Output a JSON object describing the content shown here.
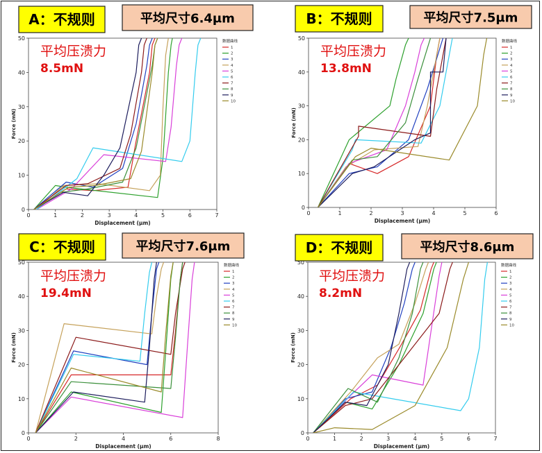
{
  "chart_data": [
    {
      "type": "line",
      "panel_label": "A：不规则",
      "size_label": "平均尺寸6.4μm",
      "annotation_title": "平均压溃力",
      "annotation_value": "8.5mN",
      "xlabel": "Displacement (μm)",
      "ylabel": "Force (mN)",
      "xlim": [
        0,
        7
      ],
      "ylim": [
        0,
        50
      ],
      "xticks": [
        "0",
        "1",
        "2",
        "3",
        "4",
        "5",
        "6",
        "7"
      ],
      "yticks": [
        "0",
        "10",
        "20",
        "30",
        "40",
        "50"
      ],
      "legend_title": "数据曲线",
      "series": [
        {
          "name": "1",
          "color": "#d62728",
          "x": [
            0.2,
            1.4,
            2.4,
            3.7,
            4.0,
            4.5,
            4.6,
            4.7
          ],
          "y": [
            0,
            6,
            5.5,
            6.5,
            20,
            40,
            48,
            50
          ]
        },
        {
          "name": "2",
          "color": "#2ca02c",
          "x": [
            0.2,
            1.0,
            1.4,
            4.8,
            5.0,
            5.2,
            5.3,
            5.35
          ],
          "y": [
            0,
            7,
            6.5,
            3.5,
            15,
            40,
            48,
            50
          ]
        },
        {
          "name": "3",
          "color": "#1f3fbf",
          "x": [
            0.2,
            1.4,
            2.4,
            3.5,
            4.0,
            4.4,
            4.5,
            4.6
          ],
          "y": [
            0,
            8,
            6.5,
            12,
            25,
            42,
            48,
            50
          ]
        },
        {
          "name": "4",
          "color": "#c5a15a",
          "x": [
            0.3,
            1.3,
            2.6,
            4.5,
            4.9,
            5.0,
            5.1,
            5.2
          ],
          "y": [
            0,
            7,
            7.5,
            5.5,
            10,
            30,
            45,
            50
          ]
        },
        {
          "name": "5",
          "color": "#d93fd9",
          "x": [
            0.3,
            1.6,
            2.8,
            5.1,
            5.3,
            5.5,
            5.6,
            5.7
          ],
          "y": [
            0,
            6,
            16,
            14,
            24,
            42,
            48,
            50
          ]
        },
        {
          "name": "6",
          "color": "#33ccee",
          "x": [
            0.3,
            1.8,
            2.4,
            5.7,
            6.0,
            6.2,
            6.3,
            6.4
          ],
          "y": [
            0,
            9,
            18,
            14,
            20,
            40,
            48,
            50
          ]
        },
        {
          "name": "7",
          "color": "#8b1a1a",
          "x": [
            0.2,
            1.4,
            2.2,
            3.4,
            3.8,
            4.2,
            4.3,
            4.4
          ],
          "y": [
            0,
            7,
            7.5,
            12,
            22,
            40,
            48,
            50
          ]
        },
        {
          "name": "8",
          "color": "#3a8f3a",
          "x": [
            0.2,
            1.2,
            2.2,
            3.5,
            4.0,
            4.6,
            4.7,
            4.8
          ],
          "y": [
            0,
            5,
            6,
            8,
            18,
            42,
            48,
            50
          ]
        },
        {
          "name": "9",
          "color": "#1c1c5c",
          "x": [
            0.2,
            1.3,
            2.2,
            2.8,
            3.4,
            4.0,
            4.1,
            4.2
          ],
          "y": [
            0,
            5,
            4,
            10,
            18,
            40,
            48,
            50
          ]
        },
        {
          "name": "10",
          "color": "#9a8a2a",
          "x": [
            0.2,
            1.5,
            2.5,
            3.8,
            4.2,
            4.6,
            4.7,
            4.8
          ],
          "y": [
            0,
            6.5,
            7,
            9,
            17,
            40,
            48,
            50
          ]
        }
      ]
    },
    {
      "type": "line",
      "panel_label": "B：不规则",
      "size_label": "平均尺寸7.5μm",
      "annotation_title": "平均压溃力",
      "annotation_value": "13.8mN",
      "xlabel": "Displacement (μm)",
      "ylabel": "Force (mN)",
      "xlim": [
        0,
        6
      ],
      "ylim": [
        0,
        50
      ],
      "xticks": [
        "0",
        "1",
        "2",
        "3",
        "4",
        "5",
        "6"
      ],
      "yticks": [
        "0",
        "10",
        "20",
        "30",
        "40",
        "50"
      ],
      "legend_title": "数据曲线",
      "series": [
        {
          "name": "1",
          "color": "#d62728",
          "x": [
            0.3,
            1.3,
            2.2,
            3.2,
            3.9,
            4.1,
            4.2
          ],
          "y": [
            0,
            13,
            10,
            15,
            30,
            45,
            50
          ]
        },
        {
          "name": "2",
          "color": "#2ca02c",
          "x": [
            0.3,
            1.0,
            1.3,
            2.6,
            2.8,
            3.1,
            3.2
          ],
          "y": [
            0,
            14,
            20,
            30,
            38,
            48,
            50
          ]
        },
        {
          "name": "3",
          "color": "#1f3fbf",
          "x": [
            0.3,
            1.3,
            2.2,
            3.2,
            3.8,
            4.2,
            4.3
          ],
          "y": [
            0,
            10,
            12,
            20,
            35,
            47,
            50
          ]
        },
        {
          "name": "4",
          "color": "#c5a15a",
          "x": [
            0.3,
            1.2,
            2.1,
            3.5,
            3.8,
            4.1,
            4.2
          ],
          "y": [
            0,
            12,
            17,
            18,
            30,
            45,
            50
          ]
        },
        {
          "name": "5",
          "color": "#d93fd9",
          "x": [
            0.3,
            1.3,
            2.5,
            3.1,
            3.4,
            3.6,
            3.7
          ],
          "y": [
            0,
            13,
            17,
            30,
            40,
            48,
            50
          ]
        },
        {
          "name": "6",
          "color": "#33ccee",
          "x": [
            0.3,
            1.4,
            1.5,
            3.6,
            4.2,
            4.5,
            4.6
          ],
          "y": [
            0,
            17,
            20,
            19,
            30,
            45,
            50
          ]
        },
        {
          "name": "7",
          "color": "#8b1a1a",
          "x": [
            0.3,
            1.6,
            1.6,
            3.9,
            4.1,
            4.3,
            4.4
          ],
          "y": [
            0,
            21,
            24,
            21,
            35,
            45,
            50
          ]
        },
        {
          "name": "8",
          "color": "#3a8f3a",
          "x": [
            0.3,
            1.4,
            2.2,
            3.1,
            3.5,
            3.8,
            3.9
          ],
          "y": [
            0,
            14,
            15,
            25,
            38,
            47,
            50
          ]
        },
        {
          "name": "9",
          "color": "#1c1c5c",
          "x": [
            0.3,
            1.4,
            2.1,
            3.4,
            3.9,
            3.9,
            4.3,
            4.4
          ],
          "y": [
            0,
            10,
            12,
            20,
            22,
            40,
            40,
            50
          ]
        },
        {
          "name": "10",
          "color": "#9a8a2a",
          "x": [
            0.3,
            1.5,
            2.0,
            4.5,
            5.4,
            5.6,
            5.7
          ],
          "y": [
            0,
            15,
            17.5,
            14,
            30,
            45,
            50
          ]
        }
      ]
    },
    {
      "type": "line",
      "panel_label": "C：不规则",
      "size_label": "平均尺寸7.6μm",
      "annotation_title": "平均压溃力",
      "annotation_value": "19.4mN",
      "xlabel": "Displacement (μm)",
      "ylabel": "Force (mN)",
      "xlim": [
        0,
        8
      ],
      "ylim": [
        0,
        50
      ],
      "xticks": [
        "0",
        "2",
        "4",
        "6",
        "8"
      ],
      "yticks": [
        "0",
        "10",
        "20",
        "30",
        "40",
        "50"
      ],
      "legend_title": "数据曲线",
      "series": [
        {
          "name": "1",
          "color": "#d62728",
          "x": [
            0.3,
            1.8,
            6.0,
            6.2,
            6.4,
            6.5
          ],
          "y": [
            0,
            17,
            17,
            30,
            45,
            50
          ]
        },
        {
          "name": "2",
          "color": "#2ca02c",
          "x": [
            0.3,
            1.8,
            5.6,
            5.8,
            6.0,
            6.1
          ],
          "y": [
            0,
            12,
            6,
            25,
            45,
            50
          ]
        },
        {
          "name": "3",
          "color": "#1f3fbf",
          "x": [
            0.3,
            1.9,
            5.0,
            5.2,
            5.4,
            5.5
          ],
          "y": [
            0,
            24,
            20,
            35,
            48,
            50
          ]
        },
        {
          "name": "4",
          "color": "#c5a15a",
          "x": [
            0.3,
            1.5,
            5.2,
            5.4,
            5.6,
            5.7
          ],
          "y": [
            0,
            32,
            29,
            40,
            48,
            50
          ]
        },
        {
          "name": "5",
          "color": "#d93fd9",
          "x": [
            0.3,
            1.8,
            6.5,
            6.7,
            6.9,
            7.0
          ],
          "y": [
            0,
            10.5,
            4.5,
            25,
            45,
            50
          ]
        },
        {
          "name": "6",
          "color": "#33ccee",
          "x": [
            0.3,
            1.9,
            4.7,
            4.9,
            5.1,
            5.2
          ],
          "y": [
            0,
            23,
            21,
            35,
            47,
            50
          ]
        },
        {
          "name": "7",
          "color": "#8b1a1a",
          "x": [
            0.3,
            2.0,
            6.0,
            6.2,
            6.5,
            6.6
          ],
          "y": [
            0,
            28,
            23,
            35,
            48,
            50
          ]
        },
        {
          "name": "8",
          "color": "#3a8f3a",
          "x": [
            0.3,
            1.8,
            6.0,
            6.2,
            6.4,
            6.5
          ],
          "y": [
            0,
            15,
            13,
            28,
            45,
            50
          ]
        },
        {
          "name": "9",
          "color": "#1c1c5c",
          "x": [
            0.3,
            1.9,
            4.9,
            5.1,
            5.3,
            5.4
          ],
          "y": [
            0,
            12,
            9,
            25,
            45,
            50
          ]
        },
        {
          "name": "10",
          "color": "#9a8a2a",
          "x": [
            0.3,
            1.8,
            5.6,
            5.8,
            6.0,
            6.1
          ],
          "y": [
            0,
            19,
            12,
            30,
            46,
            50
          ]
        }
      ]
    },
    {
      "type": "line",
      "panel_label": "D：不规则",
      "size_label": "平均尺寸8.6μm",
      "annotation_title": "平均压溃力",
      "annotation_value": "8.2mN",
      "xlabel": "Displacement (μm)",
      "ylabel": "Force (mN)",
      "xlim": [
        0,
        7
      ],
      "ylim": [
        0,
        50
      ],
      "xticks": [
        "0",
        "1",
        "2",
        "3",
        "4",
        "5",
        "6",
        "7"
      ],
      "yticks": [
        "0",
        "10",
        "20",
        "30",
        "40",
        "50"
      ],
      "legend_title": "数据曲线",
      "series": [
        {
          "name": "1",
          "color": "#d62728",
          "x": [
            0.2,
            1.6,
            2.6,
            3.5,
            4.2,
            4.6,
            4.7
          ],
          "y": [
            0,
            10,
            14,
            26,
            36,
            48,
            50
          ]
        },
        {
          "name": "2",
          "color": "#2ca02c",
          "x": [
            0.2,
            1.4,
            2.4,
            3.4,
            4.3,
            4.7,
            4.8
          ],
          "y": [
            0,
            9,
            7,
            20,
            35,
            48,
            50
          ]
        },
        {
          "name": "3",
          "color": "#1f3fbf",
          "x": [
            0.2,
            1.4,
            2.4,
            3.1,
            3.6,
            3.9,
            4.0
          ],
          "y": [
            0,
            10,
            12,
            25,
            38,
            48,
            50
          ]
        },
        {
          "name": "4",
          "color": "#c5a15a",
          "x": [
            0.2,
            1.6,
            2.6,
            3.4,
            4.0,
            4.4,
            4.5
          ],
          "y": [
            0,
            12,
            22,
            26,
            38,
            48,
            50
          ]
        },
        {
          "name": "5",
          "color": "#d93fd9",
          "x": [
            0.2,
            1.6,
            2.4,
            4.3,
            4.6,
            4.9,
            5.0
          ],
          "y": [
            0,
            11,
            17,
            14,
            30,
            46,
            50
          ]
        },
        {
          "name": "6",
          "color": "#33ccee",
          "x": [
            0.2,
            1.7,
            5.7,
            6.0,
            6.4,
            6.6,
            6.7
          ],
          "y": [
            0,
            12,
            6.5,
            10,
            25,
            45,
            50
          ]
        },
        {
          "name": "7",
          "color": "#8b1a1a",
          "x": [
            0.2,
            1.4,
            2.4,
            3.6,
            4.9,
            5.3,
            5.4
          ],
          "y": [
            0,
            8,
            10,
            22,
            35,
            48,
            50
          ]
        },
        {
          "name": "8",
          "color": "#3a8f3a",
          "x": [
            0.2,
            1.5,
            2.6,
            3.4,
            3.9,
            4.2,
            4.3
          ],
          "y": [
            0,
            13,
            9,
            22,
            35,
            48,
            50
          ]
        },
        {
          "name": "9",
          "color": "#1c1c5c",
          "x": [
            0.2,
            1.4,
            2.2,
            3.0,
            3.4,
            3.7,
            3.8
          ],
          "y": [
            0,
            9,
            8,
            20,
            35,
            48,
            50
          ]
        },
        {
          "name": "10",
          "color": "#9a8a2a",
          "x": [
            0.2,
            1.0,
            2.4,
            4.0,
            5.2,
            5.8,
            6.0
          ],
          "y": [
            0,
            1.5,
            1,
            8,
            25,
            45,
            50
          ]
        }
      ]
    }
  ]
}
